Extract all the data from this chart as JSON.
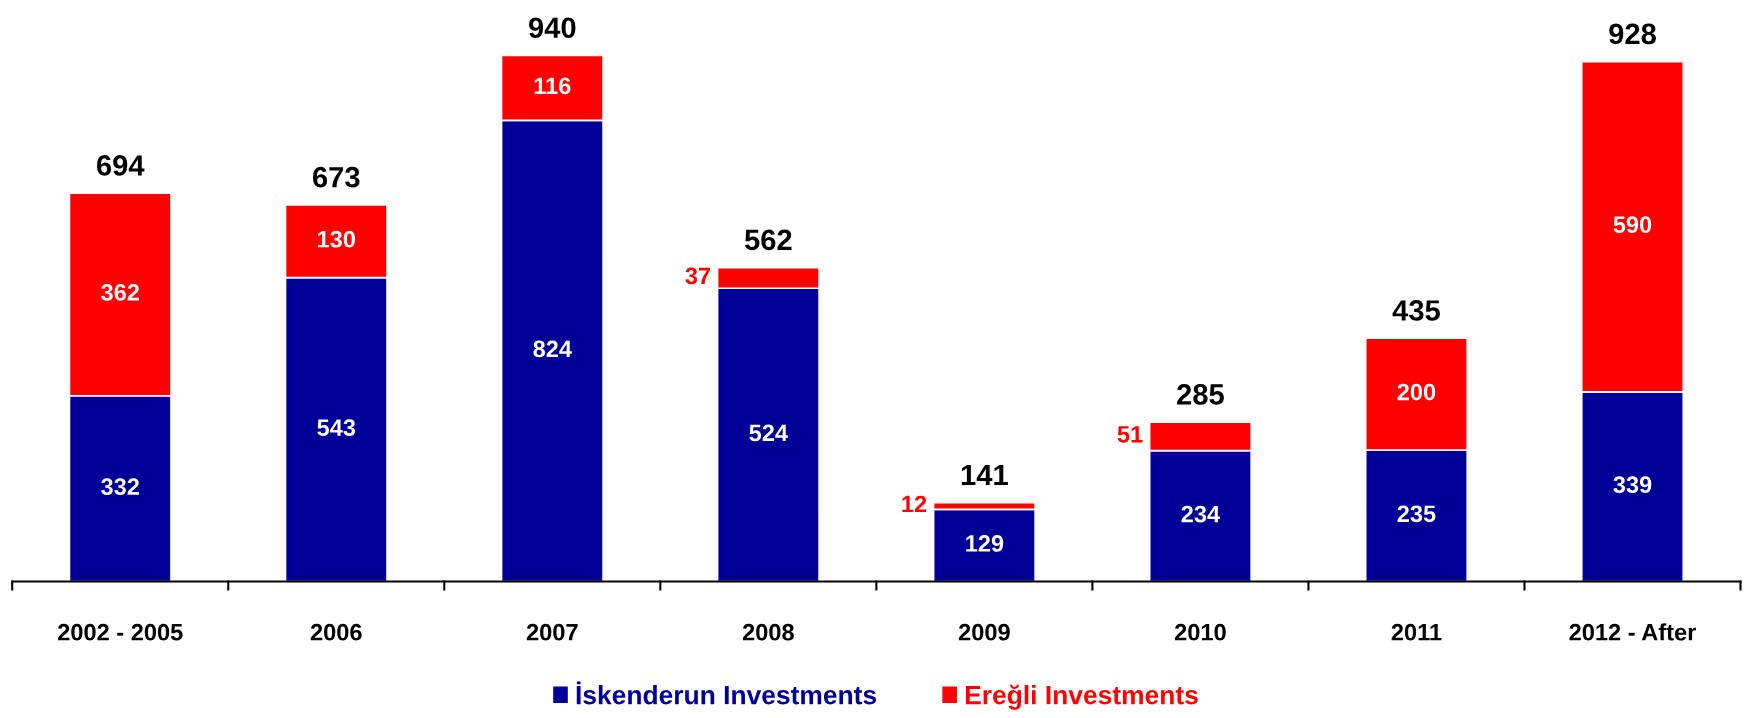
{
  "chart_data": {
    "type": "bar",
    "stacked": true,
    "categories": [
      "2002 - 2005",
      "2006",
      "2007",
      "2008",
      "2009",
      "2010",
      "2011",
      "2012 - After"
    ],
    "series": [
      {
        "name": "İskenderun Investments",
        "color": "#000099",
        "values": [
          332,
          543,
          824,
          524,
          129,
          234,
          235,
          339
        ]
      },
      {
        "name": "Ereğli Investments",
        "color": "#ff0000",
        "values": [
          362,
          130,
          116,
          37,
          12,
          51,
          200,
          590
        ]
      }
    ],
    "data_labels": true,
    "totals": [
      "694",
      "673",
      "940",
      "562",
      "141",
      "285",
      "435",
      "928"
    ],
    "legend": "bottom",
    "grid": false,
    "tick_labels": "x"
  }
}
